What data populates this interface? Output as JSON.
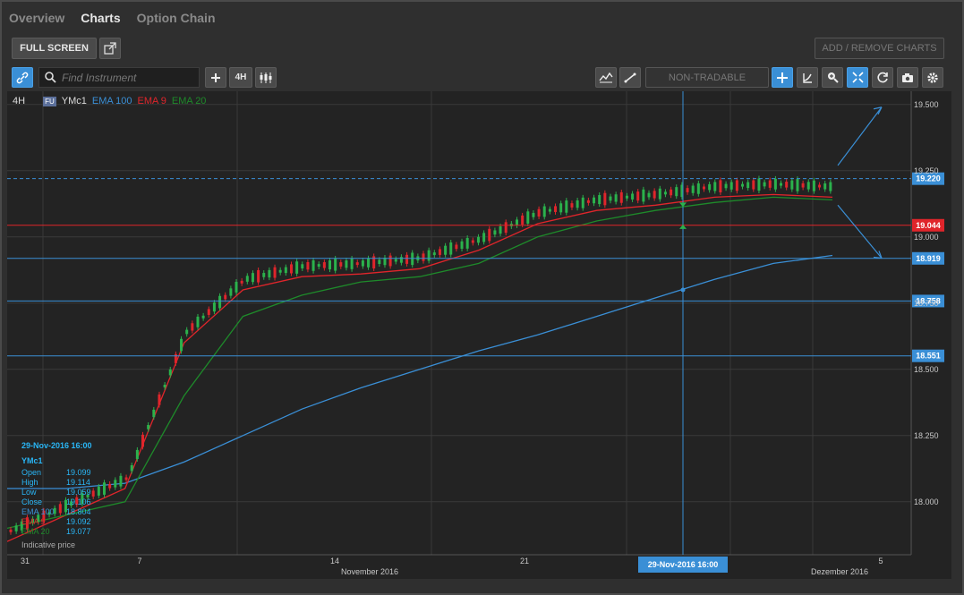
{
  "tabs": [
    {
      "label": "Overview",
      "active": false
    },
    {
      "label": "Charts",
      "active": true
    },
    {
      "label": "Option Chain",
      "active": false
    }
  ],
  "toolbar": {
    "full_screen_label": "FULL SCREEN",
    "add_remove_label": "ADD / REMOVE CHARTS",
    "search_placeholder": "Find Instrument",
    "interval_label": "4H",
    "non_tradable_label": "NON-TRADABLE"
  },
  "legend": {
    "interval": "4H",
    "badge": "FU",
    "symbol": "YMc1",
    "ema100": "EMA 100",
    "ema9": "EMA 9",
    "ema20": "EMA 20",
    "colors": {
      "ema100": "#3a8fd6",
      "ema9": "#e0252b",
      "ema20": "#1e8a2a",
      "up": "#2bb24c",
      "down": "#e0252b"
    }
  },
  "ohlc_box": {
    "date": "29-Nov-2016 16:00",
    "symbol": "YMc1",
    "rows": [
      {
        "label": "Open",
        "value": "19.099"
      },
      {
        "label": "High",
        "value": "19.114"
      },
      {
        "label": "Low",
        "value": "19.059"
      },
      {
        "label": "Close",
        "value": "19.106"
      },
      {
        "label": "EMA 100",
        "value": "18.804"
      },
      {
        "label": "EMA 9",
        "value": "19.092"
      },
      {
        "label": "EMA 20",
        "value": "19.077"
      }
    ],
    "footer": "Indicative price"
  },
  "crosshair_label": "29-Nov-2016 16:00",
  "chart_data": {
    "type": "line",
    "title": "",
    "price_axis_ticks": [
      "19.500",
      "19.250",
      "19.000",
      "18.750",
      "18.500",
      "18.250",
      "18.000"
    ],
    "ylim": [
      17.8,
      19.55
    ],
    "x_ticks": [
      "31",
      "7",
      "14",
      "21",
      "5"
    ],
    "month_labels": [
      "November 2016",
      "Dezember 2016"
    ],
    "horizontal_lines": [
      {
        "value": 19.22,
        "label": "19.220",
        "style": "dashed"
      },
      {
        "value": 19.044,
        "label": "19.044",
        "style": "red"
      },
      {
        "value": 18.919,
        "label": "18.919",
        "style": "blue"
      },
      {
        "value": 18.758,
        "label": "18.758",
        "style": "blue"
      },
      {
        "value": 18.551,
        "label": "18.551",
        "style": "blue"
      }
    ],
    "series": [
      {
        "name": "EMA 100",
        "values": [
          18.05,
          18.05,
          18.07,
          18.15,
          18.25,
          18.35,
          18.43,
          18.5,
          18.57,
          18.63,
          18.7,
          18.77,
          18.84,
          18.9,
          18.93
        ]
      },
      {
        "name": "EMA 9",
        "values": [
          17.85,
          17.95,
          18.05,
          18.6,
          18.8,
          18.85,
          18.86,
          18.88,
          18.95,
          19.05,
          19.1,
          19.12,
          19.15,
          19.16,
          19.15
        ]
      },
      {
        "name": "EMA 20",
        "values": [
          17.9,
          17.95,
          18.0,
          18.4,
          18.7,
          18.78,
          18.83,
          18.85,
          18.9,
          19.0,
          19.06,
          19.1,
          19.13,
          19.15,
          19.14
        ]
      }
    ]
  }
}
